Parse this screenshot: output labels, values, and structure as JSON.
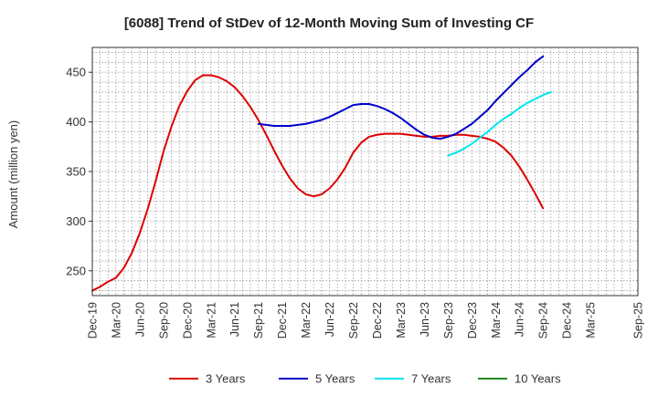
{
  "chart_data": {
    "type": "line",
    "title": "[6088]  Trend of StDev of 12-Month Moving Sum of Investing CF",
    "ylabel": "Amount (million yen)",
    "xlabel": "",
    "ylim": [
      225,
      475
    ],
    "yticks": [
      250,
      300,
      350,
      400,
      450
    ],
    "x_ticks": [
      "Dec-19",
      "Mar-20",
      "Jun-20",
      "Sep-20",
      "Dec-20",
      "Mar-21",
      "Jun-21",
      "Sep-21",
      "Dec-21",
      "Mar-22",
      "Jun-22",
      "Sep-22",
      "Dec-22",
      "Mar-23",
      "Jun-23",
      "Sep-23",
      "Dec-23",
      "Mar-24",
      "Jun-24",
      "Sep-24",
      "Dec-24",
      "Mar-25",
      "Sep-25"
    ],
    "grid": true,
    "legend_position": "bottom",
    "series": [
      {
        "name": "3 Years",
        "color": "#dd0000",
        "points": [
          [
            "2019-12",
            230
          ],
          [
            "2020-01",
            234
          ],
          [
            "2020-02",
            239
          ],
          [
            "2020-03",
            243
          ],
          [
            "2020-04",
            253
          ],
          [
            "2020-05",
            268
          ],
          [
            "2020-06",
            288
          ],
          [
            "2020-07",
            312
          ],
          [
            "2020-08",
            340
          ],
          [
            "2020-09",
            370
          ],
          [
            "2020-10",
            395
          ],
          [
            "2020-11",
            416
          ],
          [
            "2020-12",
            431
          ],
          [
            "2021-01",
            442
          ],
          [
            "2021-02",
            447
          ],
          [
            "2021-03",
            447
          ],
          [
            "2021-04",
            445
          ],
          [
            "2021-05",
            441
          ],
          [
            "2021-06",
            435
          ],
          [
            "2021-07",
            426
          ],
          [
            "2021-08",
            415
          ],
          [
            "2021-09",
            402
          ],
          [
            "2021-10",
            387
          ],
          [
            "2021-11",
            371
          ],
          [
            "2021-12",
            356
          ],
          [
            "2022-01",
            343
          ],
          [
            "2022-02",
            333
          ],
          [
            "2022-03",
            327
          ],
          [
            "2022-04",
            325
          ],
          [
            "2022-05",
            327
          ],
          [
            "2022-06",
            333
          ],
          [
            "2022-07",
            342
          ],
          [
            "2022-08",
            354
          ],
          [
            "2022-09",
            369
          ],
          [
            "2022-10",
            379
          ],
          [
            "2022-11",
            385
          ],
          [
            "2022-12",
            387
          ],
          [
            "2023-01",
            388
          ],
          [
            "2023-02",
            388
          ],
          [
            "2023-03",
            388
          ],
          [
            "2023-04",
            387
          ],
          [
            "2023-05",
            386
          ],
          [
            "2023-06",
            385
          ],
          [
            "2023-07",
            385
          ],
          [
            "2023-08",
            386
          ],
          [
            "2023-09",
            386
          ],
          [
            "2023-10",
            387
          ],
          [
            "2023-11",
            387
          ],
          [
            "2023-12",
            386
          ],
          [
            "2024-01",
            385
          ],
          [
            "2024-02",
            383
          ],
          [
            "2024-03",
            380
          ],
          [
            "2024-04",
            374
          ],
          [
            "2024-05",
            366
          ],
          [
            "2024-06",
            355
          ],
          [
            "2024-07",
            342
          ],
          [
            "2024-08",
            328
          ],
          [
            "2024-09",
            313
          ]
        ]
      },
      {
        "name": "5 Years",
        "color": "#0000cc",
        "points": [
          [
            "2021-09",
            398
          ],
          [
            "2021-10",
            397
          ],
          [
            "2021-11",
            396
          ],
          [
            "2021-12",
            396
          ],
          [
            "2022-01",
            396
          ],
          [
            "2022-02",
            397
          ],
          [
            "2022-03",
            398
          ],
          [
            "2022-04",
            400
          ],
          [
            "2022-05",
            402
          ],
          [
            "2022-06",
            405
          ],
          [
            "2022-07",
            409
          ],
          [
            "2022-08",
            413
          ],
          [
            "2022-09",
            417
          ],
          [
            "2022-10",
            418
          ],
          [
            "2022-11",
            418
          ],
          [
            "2022-12",
            416
          ],
          [
            "2023-01",
            413
          ],
          [
            "2023-02",
            409
          ],
          [
            "2023-03",
            404
          ],
          [
            "2023-04",
            398
          ],
          [
            "2023-05",
            392
          ],
          [
            "2023-06",
            387
          ],
          [
            "2023-07",
            384
          ],
          [
            "2023-08",
            383
          ],
          [
            "2023-09",
            385
          ],
          [
            "2023-10",
            388
          ],
          [
            "2023-11",
            393
          ],
          [
            "2023-12",
            398
          ],
          [
            "2024-01",
            405
          ],
          [
            "2024-02",
            412
          ],
          [
            "2024-03",
            421
          ],
          [
            "2024-04",
            429
          ],
          [
            "2024-05",
            437
          ],
          [
            "2024-06",
            445
          ],
          [
            "2024-07",
            452
          ],
          [
            "2024-08",
            460
          ],
          [
            "2024-09",
            466
          ]
        ]
      },
      {
        "name": "7 Years",
        "color": "#00e5ee",
        "points": [
          [
            "2023-09",
            366
          ],
          [
            "2023-10",
            369
          ],
          [
            "2023-11",
            373
          ],
          [
            "2023-12",
            378
          ],
          [
            "2024-01",
            384
          ],
          [
            "2024-02",
            390
          ],
          [
            "2024-03",
            397
          ],
          [
            "2024-04",
            403
          ],
          [
            "2024-05",
            408
          ],
          [
            "2024-06",
            414
          ],
          [
            "2024-07",
            419
          ],
          [
            "2024-08",
            423
          ],
          [
            "2024-09",
            427
          ],
          [
            "2024-10",
            430
          ]
        ]
      },
      {
        "name": "10 Years",
        "color": "#228b22",
        "points": []
      }
    ]
  }
}
